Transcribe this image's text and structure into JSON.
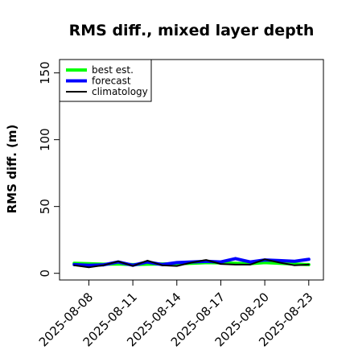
{
  "chart_data": {
    "type": "line",
    "title": "RMS diff., mixed layer depth",
    "xlabel": "",
    "ylabel": "RMS diff. (m)",
    "ylim": [
      -5,
      160
    ],
    "yticks": [
      0,
      50,
      100,
      150
    ],
    "xlim": [
      "2025-08-06",
      "2025-08-24"
    ],
    "xticks": [
      "2025-08-08",
      "2025-08-11",
      "2025-08-14",
      "2025-08-17",
      "2025-08-20",
      "2025-08-23"
    ],
    "highlight_tick": "2025-08-14",
    "legend_position": "top-left",
    "grid": false,
    "x": [
      "2025-08-07",
      "2025-08-08",
      "2025-08-09",
      "2025-08-10",
      "2025-08-11",
      "2025-08-12",
      "2025-08-13",
      "2025-08-14",
      "2025-08-15",
      "2025-08-16",
      "2025-08-17",
      "2025-08-18",
      "2025-08-19",
      "2025-08-20",
      "2025-08-21",
      "2025-08-22",
      "2025-08-23"
    ],
    "series": [
      {
        "name": "best est.",
        "color": "#00ff00",
        "values": [
          7.5,
          7.2,
          6.8,
          7.0,
          6.5,
          6.8,
          7.0,
          7.2,
          7.5,
          8.0,
          7.8,
          7.5,
          7.2,
          8.0,
          7.5,
          7.0,
          6.5
        ]
      },
      {
        "name": "forecast",
        "color": "#0000ff",
        "values": [
          6.5,
          6.0,
          6.3,
          8.5,
          6.0,
          8.5,
          6.5,
          8.0,
          8.5,
          9.0,
          8.5,
          11.0,
          8.5,
          10.0,
          9.5,
          9.0,
          10.5
        ]
      },
      {
        "name": "climatology",
        "color": "#000000",
        "values": [
          6.0,
          4.5,
          6.0,
          9.0,
          5.5,
          9.5,
          6.0,
          5.5,
          8.0,
          10.0,
          7.0,
          6.5,
          6.5,
          10.5,
          8.0,
          6.0,
          6.5
        ]
      }
    ]
  }
}
